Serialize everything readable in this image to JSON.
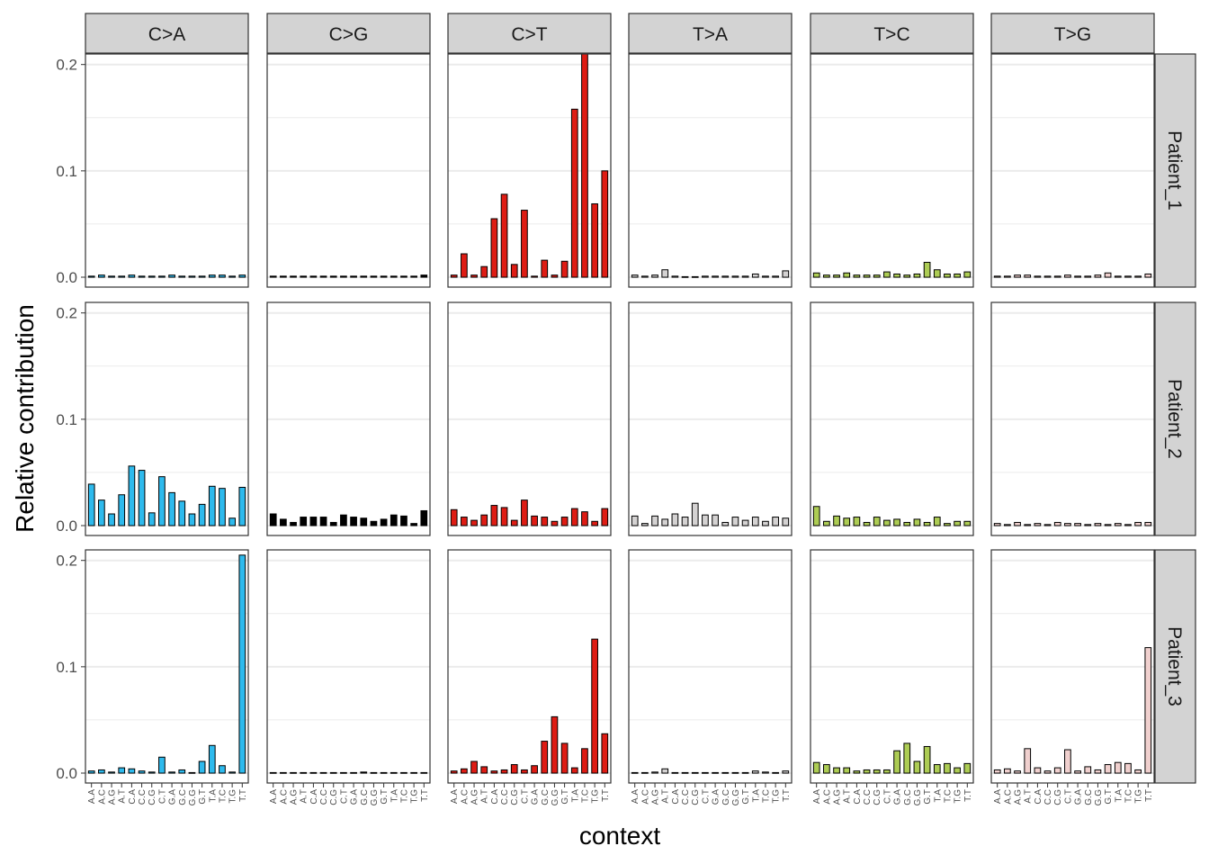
{
  "chart_data": {
    "type": "bar",
    "xlabel": "context",
    "ylabel": "Relative contribution",
    "ylim": [
      0,
      0.21
    ],
    "yticks": [
      0.0,
      0.1,
      0.2
    ],
    "ytick_labels": [
      "0.0",
      "0.1",
      "0.2"
    ],
    "grid": true,
    "columns": [
      "C>A",
      "C>G",
      "C>T",
      "T>A",
      "T>C",
      "T>G"
    ],
    "rows": [
      "Patient_1",
      "Patient_2",
      "Patient_3"
    ],
    "colors": {
      "C>A": "#2EBAED",
      "C>G": "#000000",
      "C>T": "#DE1C14",
      "T>A": "#D4D2D2",
      "T>C": "#ADCC54",
      "T>G": "#F0D0CE"
    },
    "contexts": [
      "A.A",
      "A.C",
      "A.G",
      "A.T",
      "C.A",
      "C.C",
      "C.G",
      "C.T",
      "G.A",
      "G.C",
      "G.G",
      "G.T",
      "T.A",
      "T.C",
      "T.G",
      "T.T"
    ],
    "values": {
      "Patient_1": {
        "C>A": [
          0.001,
          0.002,
          0.001,
          0.001,
          0.002,
          0.001,
          0.001,
          0.001,
          0.002,
          0.001,
          0.001,
          0.001,
          0.002,
          0.002,
          0.001,
          0.002
        ],
        "C>G": [
          0.001,
          0.001,
          0.001,
          0.001,
          0.001,
          0.001,
          0.001,
          0.001,
          0.001,
          0.001,
          0.001,
          0.001,
          0.001,
          0.001,
          0.001,
          0.002
        ],
        "C>T": [
          0.002,
          0.022,
          0.002,
          0.01,
          0.055,
          0.078,
          0.012,
          0.063,
          0.001,
          0.016,
          0.002,
          0.015,
          0.158,
          0.21,
          0.069,
          0.1
        ],
        "T>A": [
          0.002,
          0.001,
          0.002,
          0.007,
          0.001,
          0.0005,
          0.0005,
          0.001,
          0.001,
          0.001,
          0.001,
          0.001,
          0.003,
          0.001,
          0.001,
          0.006
        ],
        "T>C": [
          0.004,
          0.002,
          0.002,
          0.004,
          0.002,
          0.002,
          0.002,
          0.005,
          0.003,
          0.002,
          0.003,
          0.014,
          0.007,
          0.003,
          0.003,
          0.005
        ],
        "T>G": [
          0.001,
          0.001,
          0.002,
          0.002,
          0.001,
          0.001,
          0.001,
          0.002,
          0.001,
          0.001,
          0.002,
          0.004,
          0.001,
          0.001,
          0.001,
          0.003
        ]
      },
      "Patient_2": {
        "C>A": [
          0.039,
          0.024,
          0.011,
          0.029,
          0.056,
          0.052,
          0.012,
          0.046,
          0.031,
          0.023,
          0.011,
          0.02,
          0.037,
          0.035,
          0.007,
          0.036
        ],
        "C>G": [
          0.011,
          0.006,
          0.003,
          0.008,
          0.008,
          0.008,
          0.003,
          0.01,
          0.008,
          0.007,
          0.004,
          0.006,
          0.01,
          0.009,
          0.002,
          0.014
        ],
        "C>T": [
          0.015,
          0.008,
          0.005,
          0.01,
          0.019,
          0.017,
          0.005,
          0.024,
          0.009,
          0.008,
          0.004,
          0.008,
          0.016,
          0.013,
          0.004,
          0.016
        ],
        "T>A": [
          0.009,
          0.002,
          0.009,
          0.006,
          0.011,
          0.008,
          0.021,
          0.01,
          0.01,
          0.003,
          0.008,
          0.005,
          0.008,
          0.004,
          0.008,
          0.007
        ],
        "T>C": [
          0.018,
          0.004,
          0.009,
          0.007,
          0.008,
          0.003,
          0.008,
          0.005,
          0.006,
          0.003,
          0.006,
          0.003,
          0.008,
          0.002,
          0.004,
          0.004
        ],
        "T>G": [
          0.002,
          0.001,
          0.003,
          0.001,
          0.002,
          0.001,
          0.003,
          0.002,
          0.002,
          0.001,
          0.002,
          0.001,
          0.002,
          0.001,
          0.003,
          0.003
        ]
      },
      "Patient_3": {
        "C>A": [
          0.002,
          0.003,
          0.001,
          0.005,
          0.004,
          0.002,
          0.001,
          0.015,
          0.001,
          0.003,
          0.0005,
          0.011,
          0.026,
          0.007,
          0.001,
          0.205
        ],
        "C>G": [
          0.0005,
          0.0005,
          0.0005,
          0.0005,
          0.0005,
          0.0005,
          0.0005,
          0.0005,
          0.0005,
          0.001,
          0.0005,
          0.0005,
          0.0005,
          0.0005,
          0.0005,
          0.0005
        ],
        "C>T": [
          0.002,
          0.004,
          0.011,
          0.006,
          0.002,
          0.003,
          0.008,
          0.003,
          0.007,
          0.03,
          0.053,
          0.028,
          0.005,
          0.023,
          0.126,
          0.037
        ],
        "T>A": [
          0.0005,
          0.0005,
          0.001,
          0.004,
          0.0005,
          0.0005,
          0.0005,
          0.0005,
          0.0005,
          0.0005,
          0.0005,
          0.0005,
          0.002,
          0.001,
          0.0005,
          0.002
        ],
        "T>C": [
          0.01,
          0.008,
          0.005,
          0.005,
          0.002,
          0.003,
          0.003,
          0.003,
          0.021,
          0.028,
          0.011,
          0.025,
          0.008,
          0.009,
          0.005,
          0.009
        ],
        "T>G": [
          0.003,
          0.004,
          0.002,
          0.023,
          0.005,
          0.002,
          0.005,
          0.022,
          0.002,
          0.006,
          0.003,
          0.008,
          0.01,
          0.009,
          0.003,
          0.118
        ]
      }
    }
  }
}
